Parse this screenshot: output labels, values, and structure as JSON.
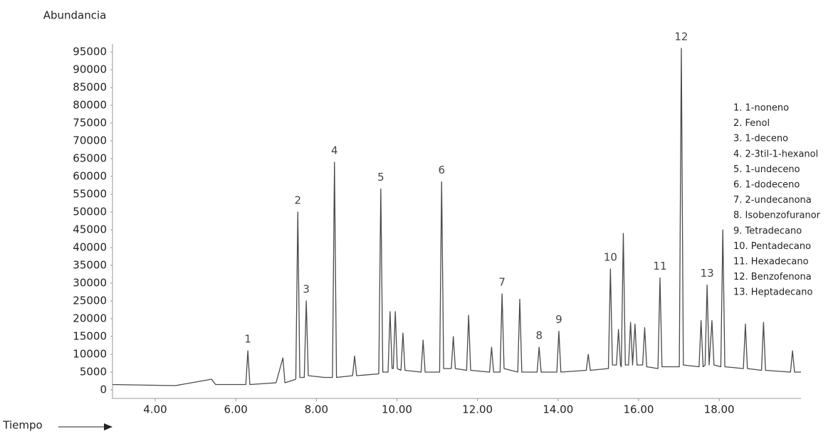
{
  "chart_data": {
    "type": "line",
    "y_label": "Abundancia",
    "x_label": "Tiempo",
    "color": "#4a4a4a",
    "xlim": [
      2.94,
      20.03
    ],
    "ylim": [
      0,
      98000
    ],
    "xticks": [
      {
        "value": 4,
        "label": "4.00"
      },
      {
        "value": 6,
        "label": "6.00"
      },
      {
        "value": 8,
        "label": "8.00"
      },
      {
        "value": 10,
        "label": "10.00"
      },
      {
        "value": 12,
        "label": "12.00"
      },
      {
        "value": 14,
        "label": "14.00"
      },
      {
        "value": 16,
        "label": "16.00"
      },
      {
        "value": 18,
        "label": "18.00"
      }
    ],
    "yticks": [
      0,
      5000,
      10000,
      15000,
      20000,
      25000,
      30000,
      35000,
      40000,
      45000,
      50000,
      55000,
      60000,
      65000,
      70000,
      75000,
      80000,
      85000,
      90000,
      95000
    ],
    "x": [
      2.94,
      4.5,
      5.4,
      5.5,
      6.25,
      6.3,
      6.35,
      7.0,
      7.17,
      7.22,
      7.49,
      7.54,
      7.59,
      7.7,
      7.75,
      7.8,
      8.2,
      8.4,
      8.45,
      8.5,
      8.9,
      8.95,
      9.0,
      9.55,
      9.6,
      9.65,
      9.78,
      9.83,
      9.88,
      9.91,
      9.96,
      10.01,
      10.1,
      10.15,
      10.2,
      10.6,
      10.65,
      10.7,
      11.06,
      11.11,
      11.16,
      11.35,
      11.4,
      11.45,
      11.73,
      11.78,
      11.83,
      12.3,
      12.35,
      12.4,
      12.56,
      12.61,
      12.66,
      13.0,
      13.05,
      13.1,
      13.48,
      13.53,
      13.58,
      13.97,
      14.02,
      14.07,
      14.7,
      14.75,
      14.8,
      15.25,
      15.3,
      15.35,
      15.45,
      15.5,
      15.55,
      15.57,
      15.62,
      15.67,
      15.75,
      15.8,
      15.85,
      15.91,
      15.96,
      16.1,
      16.15,
      16.2,
      16.48,
      16.53,
      16.58,
      17.01,
      17.06,
      17.11,
      17.5,
      17.55,
      17.6,
      17.65,
      17.7,
      17.75,
      17.82,
      17.87,
      18.04,
      18.09,
      18.14,
      18.6,
      18.65,
      18.7,
      19.05,
      19.1,
      19.15,
      19.77,
      19.82,
      19.87,
      20.03
    ],
    "values": [
      1500,
      1200,
      3000,
      1500,
      1500,
      11000,
      1500,
      2000,
      9000,
      2000,
      3000,
      50000,
      3500,
      3500,
      25000,
      4000,
      3500,
      3500,
      64000,
      3500,
      4000,
      9500,
      4000,
      4500,
      56500,
      5000,
      5000,
      22000,
      6000,
      6000,
      22000,
      6000,
      5500,
      16000,
      5500,
      5000,
      14000,
      5000,
      5000,
      58500,
      6000,
      6000,
      15000,
      6000,
      5500,
      21000,
      5500,
      5000,
      12000,
      5000,
      5000,
      27000,
      6000,
      5000,
      25500,
      5000,
      5000,
      12000,
      5000,
      5000,
      16500,
      5000,
      5500,
      10000,
      5500,
      6000,
      34000,
      7000,
      7000,
      17000,
      7000,
      6500,
      44000,
      7000,
      7000,
      19000,
      7000,
      18500,
      7000,
      7000,
      17500,
      6500,
      6000,
      31500,
      6500,
      6500,
      96000,
      7000,
      6500,
      19500,
      6500,
      7000,
      29500,
      7000,
      19500,
      7000,
      6500,
      45000,
      6500,
      6000,
      18500,
      6000,
      5500,
      19000,
      5500,
      5000,
      11000,
      5000,
      5000
    ],
    "annotations": [
      {
        "text": "1",
        "x": 6.3,
        "y": 11000
      },
      {
        "text": "2",
        "x": 7.54,
        "y": 50000
      },
      {
        "text": "3",
        "x": 7.75,
        "y": 25000
      },
      {
        "text": "4",
        "x": 8.45,
        "y": 64000
      },
      {
        "text": "5",
        "x": 9.6,
        "y": 56500
      },
      {
        "text": "6",
        "x": 11.11,
        "y": 58500
      },
      {
        "text": "7",
        "x": 12.61,
        "y": 27000
      },
      {
        "text": "8",
        "x": 13.53,
        "y": 12000
      },
      {
        "text": "9",
        "x": 14.02,
        "y": 16500
      },
      {
        "text": "10",
        "x": 15.3,
        "y": 34000
      },
      {
        "text": "11",
        "x": 16.53,
        "y": 31500
      },
      {
        "text": "12",
        "x": 17.06,
        "y": 96000
      },
      {
        "text": "13",
        "x": 17.7,
        "y": 29500
      }
    ],
    "compounds": [
      "1. 1-noneno",
      "2. Fenol",
      "3. 1-deceno",
      "4. 2-3til-1-hexanol",
      "5. 1-undeceno",
      "6. 1-dodeceno",
      "7. 2-undecanona",
      "8. Isobenzofuranor",
      "9. Tetradecano",
      "10. Pentadecano",
      "11. Hexadecano",
      "12. Benzofenona",
      "13. Heptadecano"
    ]
  }
}
